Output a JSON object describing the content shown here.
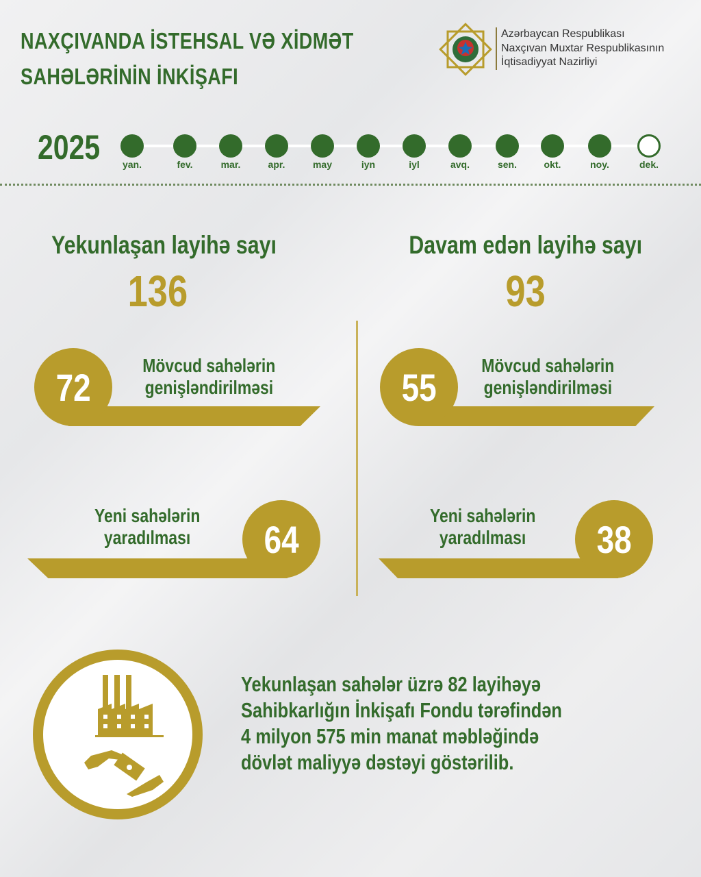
{
  "header": {
    "title_line1": "NAXÇIVANDA İSTEHSAL VƏ XİDMƏT",
    "title_line2": "SAHƏLƏRİNİN İNKİŞAFI",
    "org_line1": "Azərbaycan Respublikası",
    "org_line2": "Naxçıvan Muxtar Respublikasının",
    "org_line3": "İqtisadiyyat Nazirliyi",
    "logo": "ministry-emblem"
  },
  "timeline": {
    "year": "2025",
    "months": [
      {
        "label": "yan.",
        "done": true
      },
      {
        "label": "fev.",
        "done": true
      },
      {
        "label": "mar.",
        "done": true
      },
      {
        "label": "apr.",
        "done": true
      },
      {
        "label": "may",
        "done": true
      },
      {
        "label": "iyn",
        "done": true
      },
      {
        "label": "iyl",
        "done": true
      },
      {
        "label": "avq.",
        "done": true
      },
      {
        "label": "sen.",
        "done": true
      },
      {
        "label": "okt.",
        "done": true
      },
      {
        "label": "noy.",
        "done": true
      },
      {
        "label": "dek.",
        "done": false
      }
    ]
  },
  "completed": {
    "title": "Yekunlaşan layihə sayı",
    "total": "136",
    "expansion": {
      "value": "72",
      "label1": "Mövcud sahələrin",
      "label2": "genişləndirilməsi"
    },
    "new": {
      "value": "64",
      "label1": "Yeni sahələrin",
      "label2": "yaradılması"
    }
  },
  "ongoing": {
    "title": "Davam edən layihə sayı",
    "total": "93",
    "expansion": {
      "value": "55",
      "label1": "Mövcud sahələrin",
      "label2": "genişləndirilməsi"
    },
    "new": {
      "value": "38",
      "label1": "Yeni sahələrin",
      "label2": "yaradılması"
    }
  },
  "fund": {
    "icon": "factory-money-hands-icon",
    "lines": [
      "Yekunlaşan sahələr üzrə 82 layihəyə",
      "Sahibkarlığın İnkişafı Fondu tərəfindən",
      "4 milyon 575 min manat məbləğində",
      "dövlət maliyyə dəstəyi göstərilib."
    ]
  },
  "colors": {
    "green": "#336b2b",
    "gold": "#b89c2c"
  }
}
